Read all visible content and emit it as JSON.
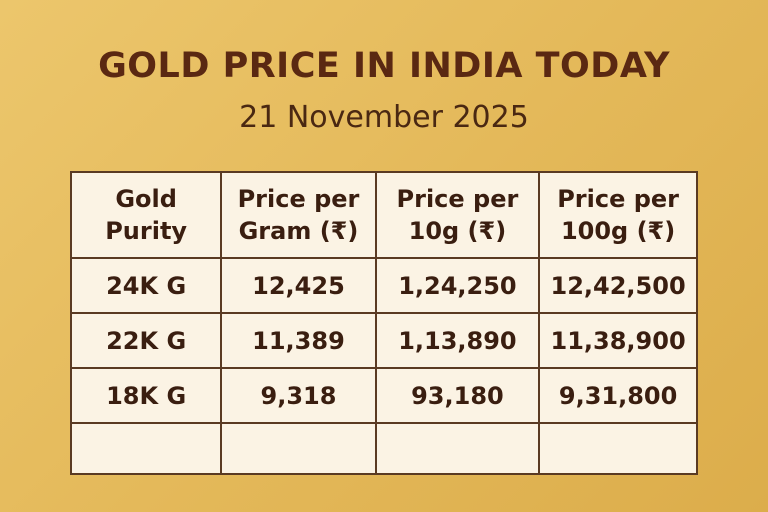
{
  "header": {
    "title": "GOLD PRICE IN INDIA TODAY",
    "subtitle": "21 November 2025"
  },
  "table": {
    "columns": [
      [
        "Gold",
        "Purity"
      ],
      [
        "Price per",
        "Gram (₹)"
      ],
      [
        "Price per",
        "10g (₹)"
      ],
      [
        "Price per",
        "100g (₹)"
      ]
    ],
    "rows": [
      [
        "24K G",
        "12,425",
        "1,24,250",
        "12,42,500"
      ],
      [
        "22K G",
        "11,389",
        "1,13,890",
        "11,38,900"
      ],
      [
        "18K G",
        "9,318",
        "93,180",
        "9,31,800"
      ]
    ]
  }
}
